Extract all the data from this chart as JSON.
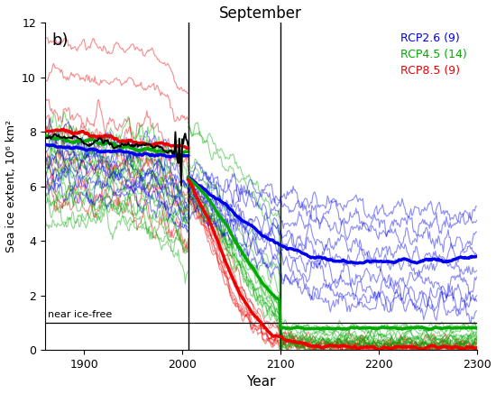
{
  "title": "September",
  "xlabel": "Year",
  "ylabel": "Sea ice extent, 10⁶ km²",
  "label_b": "b)",
  "xlim": [
    1860,
    2300
  ],
  "ylim": [
    0,
    12
  ],
  "yticks": [
    0,
    2,
    4,
    6,
    8,
    10,
    12
  ],
  "xticks": [
    1900,
    2000,
    2100,
    2200,
    2300
  ],
  "near_ice_free_level": 1.0,
  "near_ice_free_label": "near ice-free",
  "vline1": 2006,
  "vline2": 2100,
  "historical_start": 1860,
  "historical_end": 2006,
  "rcp_start": 2006,
  "rcp_end": 2300,
  "n_rcp26": 9,
  "n_rcp45": 14,
  "n_rcp85": 9,
  "color_rcp26": "#0000EE",
  "color_rcp45": "#00AA00",
  "color_rcp85": "#EE0000",
  "color_historical": "#000000",
  "background": "#FFFFFF",
  "legend_labels": [
    "RCP2.6 (9)",
    "RCP4.5 (14)",
    "RCP8.5 (9)"
  ],
  "legend_colors": [
    "#0000EE",
    "#00AA00",
    "#EE0000"
  ],
  "alpha_thin": 0.45,
  "lw_thin": 0.8,
  "lw_thick": 2.5
}
